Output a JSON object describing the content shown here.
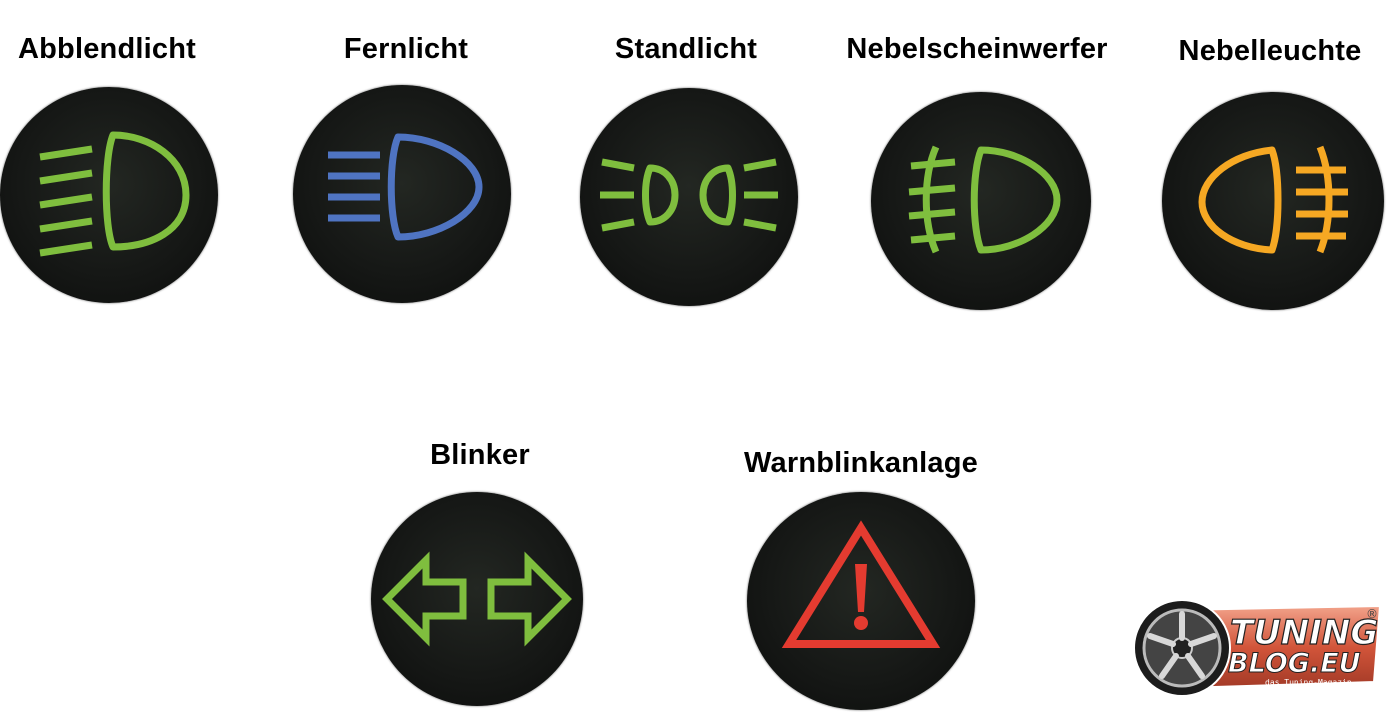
{
  "colors": {
    "green": "#7fbe3e",
    "blue": "#4f74c2",
    "orange": "#f6a823",
    "red": "#e43b30",
    "lamp_dark": "#151715"
  },
  "lamps": [
    {
      "key": "abblendlicht",
      "label": "Abblendlicht",
      "icon": "low-beam-icon",
      "color": "green"
    },
    {
      "key": "fernlicht",
      "label": "Fernlicht",
      "icon": "high-beam-icon",
      "color": "blue"
    },
    {
      "key": "standlicht",
      "label": "Standlicht",
      "icon": "parking-light-icon",
      "color": "green"
    },
    {
      "key": "nebelscheinwerfer",
      "label": "Nebelscheinwerfer",
      "icon": "front-fog-light-icon",
      "color": "green"
    },
    {
      "key": "nebelleuchte",
      "label": "Nebelleuchte",
      "icon": "rear-fog-light-icon",
      "color": "orange"
    },
    {
      "key": "blinker",
      "label": "Blinker",
      "icon": "turn-signal-icon",
      "color": "green"
    },
    {
      "key": "warnblinkanlage",
      "label": "Warnblinkanlage",
      "icon": "hazard-warning-icon",
      "color": "red"
    }
  ],
  "logo": {
    "icon": "wheel-icon",
    "brand_top": "TUNING",
    "brand_bottom": "BLOG.EU",
    "tagline": "das Tuning-Magazin",
    "registered": "®"
  }
}
